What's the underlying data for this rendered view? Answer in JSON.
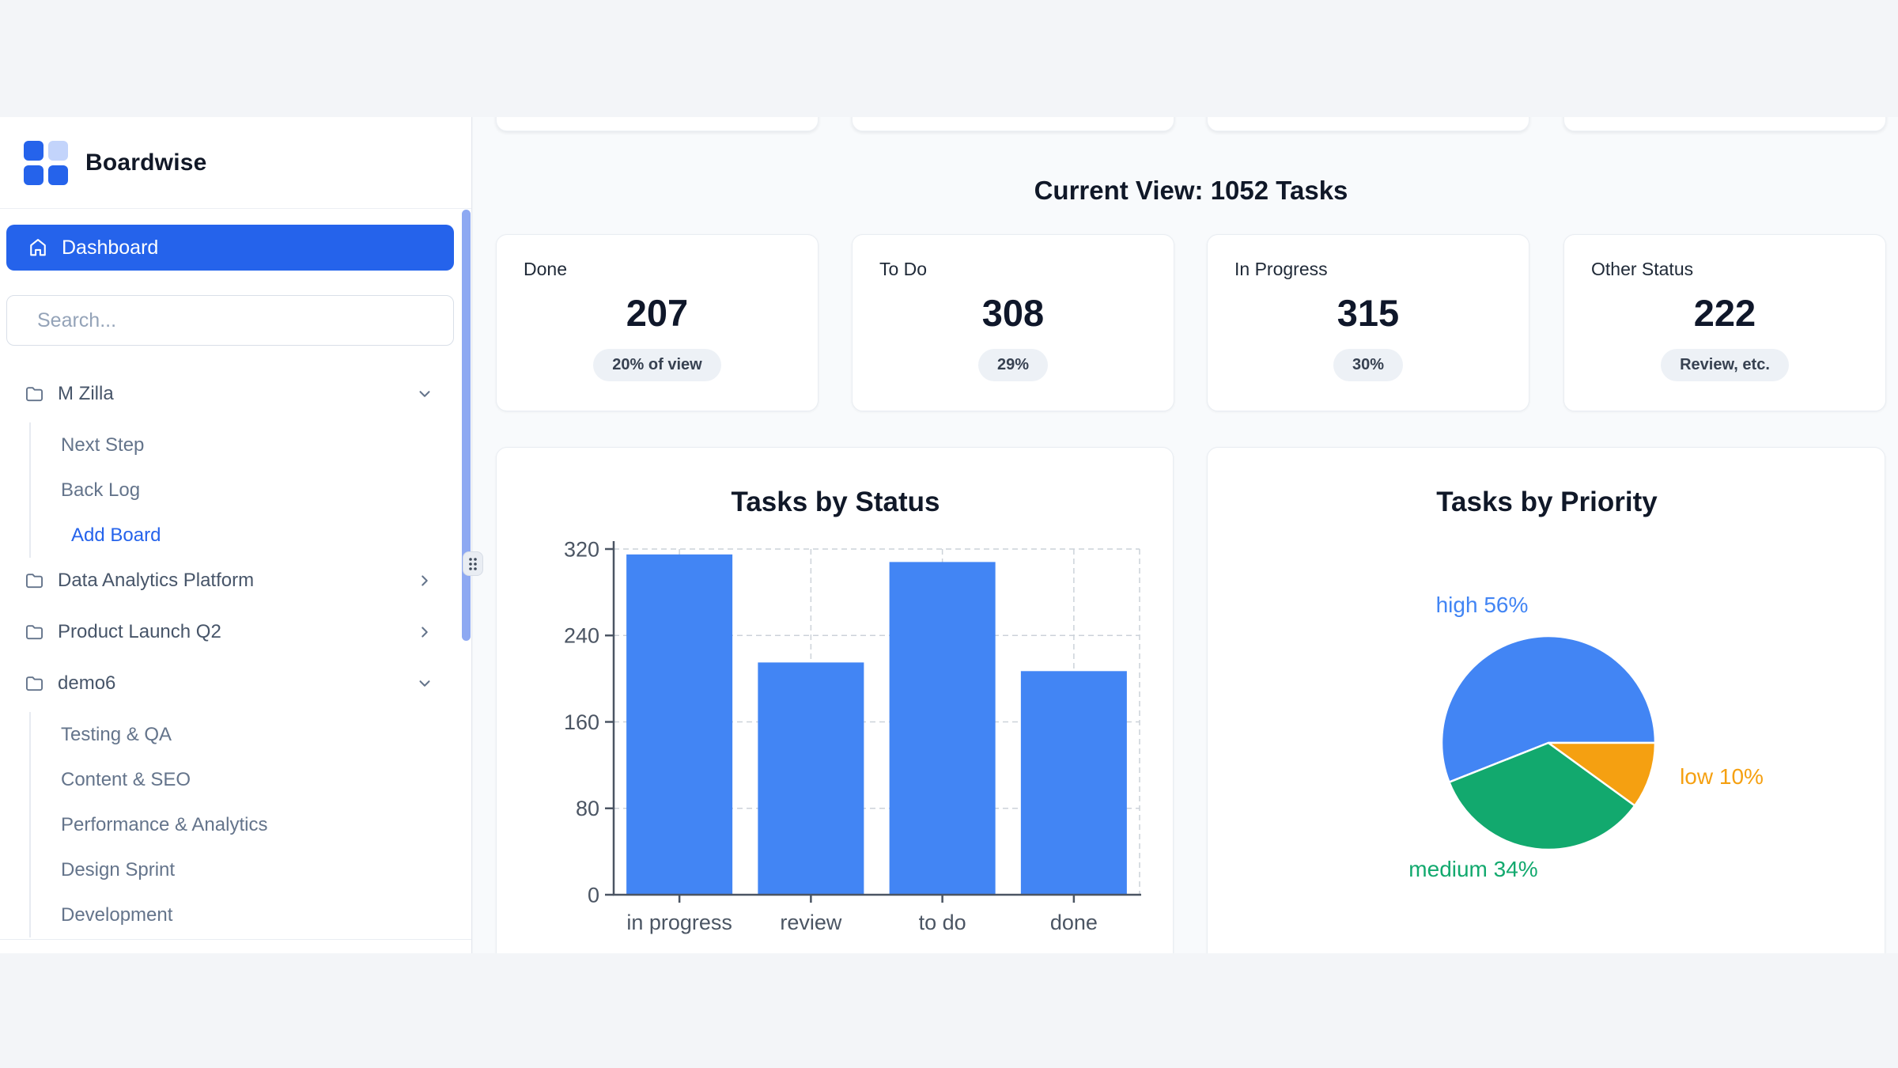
{
  "brand": {
    "name": "Boardwise"
  },
  "sidebar": {
    "dashboard_label": "Dashboard",
    "search_placeholder": "Search...",
    "boards": [
      {
        "label": "M Zilla",
        "expanded": true,
        "children": [
          "Next Step",
          "Back Log"
        ],
        "action": "Add Board"
      },
      {
        "label": "Data Analytics Platform",
        "expanded": false,
        "children": []
      },
      {
        "label": "Product Launch Q2",
        "expanded": false,
        "children": []
      },
      {
        "label": "demo6",
        "expanded": true,
        "children": [
          "Testing & QA",
          "Content & SEO",
          "Performance & Analytics",
          "Design Sprint",
          "Development"
        ]
      }
    ]
  },
  "header": {
    "title": "Current View: 1052 Tasks"
  },
  "stats": [
    {
      "label": "Done",
      "value": "207",
      "badge": "20% of view"
    },
    {
      "label": "To Do",
      "value": "308",
      "badge": "29%"
    },
    {
      "label": "In Progress",
      "value": "315",
      "badge": "30%"
    },
    {
      "label": "Other Status",
      "value": "222",
      "badge": "Review, etc."
    }
  ],
  "chart_data": [
    {
      "type": "bar",
      "title": "Tasks by Status",
      "categories": [
        "in progress",
        "review",
        "to do",
        "done"
      ],
      "values": [
        315,
        215,
        308,
        207
      ],
      "xlabel": "",
      "ylabel": "",
      "ylim": [
        0,
        320
      ],
      "yticks": [
        0,
        80,
        160,
        240,
        320
      ],
      "grid": true,
      "legend": false,
      "bar_color": "#4285f4"
    },
    {
      "type": "pie",
      "title": "Tasks by Priority",
      "labels": [
        "high",
        "medium",
        "low"
      ],
      "values_pct": [
        56,
        34,
        10
      ],
      "colors": [
        "#4285f4",
        "#12a96e",
        "#f5a011"
      ],
      "start_angle_deg": 0,
      "direction": "counterclockwise",
      "annotations": [
        "high 56%",
        "medium 34%",
        "low 10%"
      ],
      "legend": false
    }
  ],
  "colors": {
    "accent_blue": "#2563eb",
    "bar_blue": "#4285f4",
    "pie_green": "#12a96e",
    "pie_orange": "#f5a011",
    "logo_light_blue": "#c3d4fb",
    "scrollbar_blue": "#8ea9f2"
  }
}
